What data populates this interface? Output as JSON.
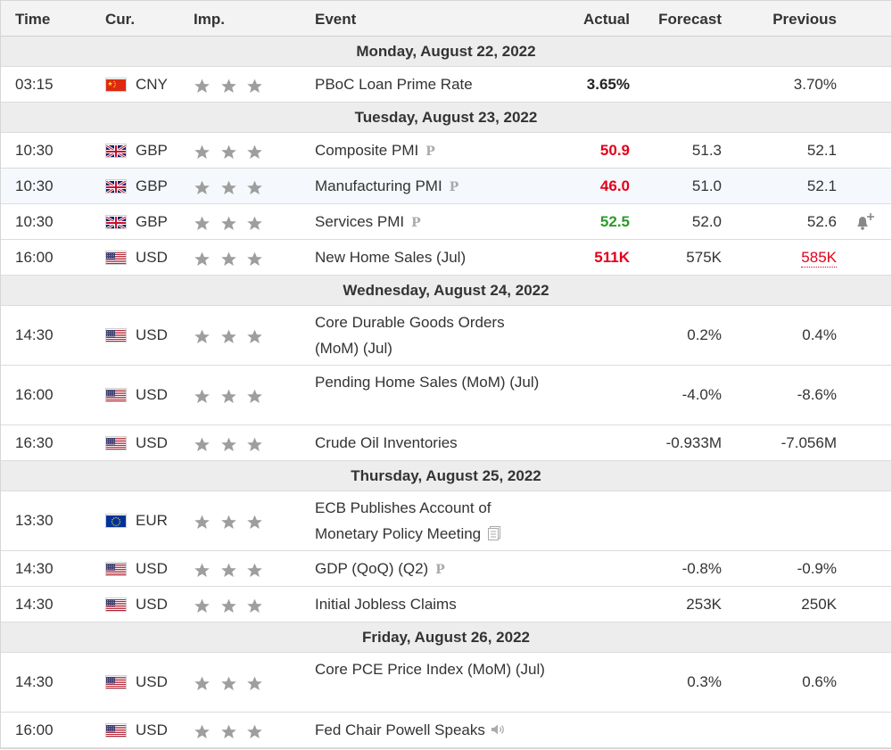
{
  "headers": {
    "time": "Time",
    "cur": "Cur.",
    "imp": "Imp.",
    "event": "Event",
    "actual": "Actual",
    "forecast": "Forecast",
    "previous": "Previous"
  },
  "days": [
    {
      "label": "Monday, August 22, 2022",
      "events": [
        {
          "time": "03:15",
          "flag": "cn",
          "cur": "CNY",
          "event": "PBoC Loan Prime Rate",
          "icon": "",
          "actual": "3.65%",
          "actual_color": "black",
          "forecast": "",
          "previous": "3.70%",
          "previous_revised": false,
          "bell": false,
          "tall": false,
          "alt": false
        }
      ]
    },
    {
      "label": "Tuesday, August 23, 2022",
      "events": [
        {
          "time": "10:30",
          "flag": "gb",
          "cur": "GBP",
          "event": "Composite PMI",
          "icon": "P",
          "actual": "50.9",
          "actual_color": "neg",
          "forecast": "51.3",
          "previous": "52.1",
          "previous_revised": false,
          "bell": false,
          "tall": false,
          "alt": false
        },
        {
          "time": "10:30",
          "flag": "gb",
          "cur": "GBP",
          "event": "Manufacturing PMI",
          "icon": "P",
          "actual": "46.0",
          "actual_color": "neg",
          "forecast": "51.0",
          "previous": "52.1",
          "previous_revised": false,
          "bell": false,
          "tall": false,
          "alt": true
        },
        {
          "time": "10:30",
          "flag": "gb",
          "cur": "GBP",
          "event": "Services PMI",
          "icon": "P",
          "actual": "52.5",
          "actual_color": "pos",
          "forecast": "52.0",
          "previous": "52.6",
          "previous_revised": false,
          "bell": true,
          "tall": false,
          "alt": false
        },
        {
          "time": "16:00",
          "flag": "us",
          "cur": "USD",
          "event": "New Home Sales (Jul)",
          "icon": "",
          "actual": "511K",
          "actual_color": "neg",
          "forecast": "575K",
          "previous": "585K",
          "previous_revised": true,
          "bell": false,
          "tall": false,
          "alt": false
        }
      ]
    },
    {
      "label": "Wednesday, August 24, 2022",
      "events": [
        {
          "time": "14:30",
          "flag": "us",
          "cur": "USD",
          "event": "Core Durable Goods Orders (MoM) (Jul)",
          "icon": "",
          "actual": "",
          "actual_color": "black",
          "forecast": "0.2%",
          "previous": "0.4%",
          "previous_revised": false,
          "bell": false,
          "tall": true,
          "alt": false
        },
        {
          "time": "16:00",
          "flag": "us",
          "cur": "USD",
          "event": "Pending Home Sales (MoM) (Jul)",
          "icon": "",
          "actual": "",
          "actual_color": "black",
          "forecast": "-4.0%",
          "previous": "-8.6%",
          "previous_revised": false,
          "bell": false,
          "tall": true,
          "alt": false
        },
        {
          "time": "16:30",
          "flag": "us",
          "cur": "USD",
          "event": "Crude Oil Inventories",
          "icon": "",
          "actual": "",
          "actual_color": "black",
          "forecast": "-0.933M",
          "previous": "-7.056M",
          "previous_revised": false,
          "bell": false,
          "tall": false,
          "alt": false
        }
      ]
    },
    {
      "label": "Thursday, August 25, 2022",
      "events": [
        {
          "time": "13:30",
          "flag": "eu",
          "cur": "EUR",
          "event": "ECB Publishes Account of Monetary Policy Meeting",
          "icon": "doc",
          "actual": "",
          "actual_color": "black",
          "forecast": "",
          "previous": "",
          "previous_revised": false,
          "bell": false,
          "tall": true,
          "alt": false
        },
        {
          "time": "14:30",
          "flag": "us",
          "cur": "USD",
          "event": "GDP (QoQ) (Q2)",
          "icon": "P",
          "actual": "",
          "actual_color": "black",
          "forecast": "-0.8%",
          "previous": "-0.9%",
          "previous_revised": false,
          "bell": false,
          "tall": false,
          "alt": false
        },
        {
          "time": "14:30",
          "flag": "us",
          "cur": "USD",
          "event": "Initial Jobless Claims",
          "icon": "",
          "actual": "",
          "actual_color": "black",
          "forecast": "253K",
          "previous": "250K",
          "previous_revised": false,
          "bell": false,
          "tall": false,
          "alt": false
        }
      ]
    },
    {
      "label": "Friday, August 26, 2022",
      "events": [
        {
          "time": "14:30",
          "flag": "us",
          "cur": "USD",
          "event": "Core PCE Price Index (MoM) (Jul)",
          "icon": "",
          "actual": "",
          "actual_color": "black",
          "forecast": "0.3%",
          "previous": "0.6%",
          "previous_revised": false,
          "bell": false,
          "tall": true,
          "alt": false
        },
        {
          "time": "16:00",
          "flag": "us",
          "cur": "USD",
          "event": "Fed Chair Powell Speaks",
          "icon": "speaker",
          "actual": "",
          "actual_color": "black",
          "forecast": "",
          "previous": "",
          "previous_revised": false,
          "bell": false,
          "tall": false,
          "alt": false
        }
      ]
    }
  ],
  "importance_stars": 3,
  "colors": {
    "negative": "#e3001b",
    "positive": "#2a9c27",
    "star": "#9e9e9e",
    "header_bg": "#f3f3f3",
    "day_bg": "#ededed"
  }
}
